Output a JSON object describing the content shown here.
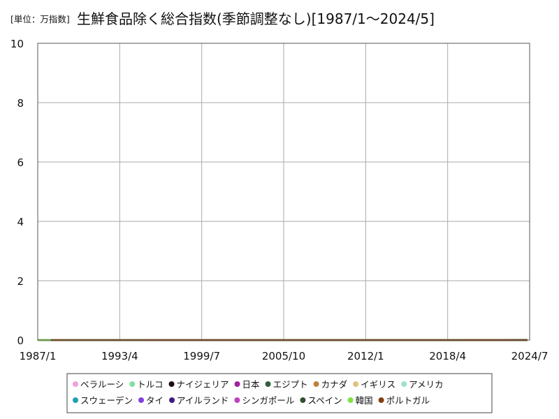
{
  "unit_label": "[単位：万指数]",
  "title": "生鮮食品除く総合指数(季節調整なし)[1987/1～2024/5]",
  "chart_data": {
    "type": "line",
    "title": "生鮮食品除く総合指数(季節調整なし)[1987/1～2024/5]",
    "unit": "[単位：万指数]",
    "xlabel": "",
    "ylabel": "",
    "x_ticks": [
      "1987/1",
      "1993/4",
      "1999/7",
      "2005/10",
      "2012/1",
      "2018/4",
      "2024/7"
    ],
    "xlim": [
      "1987/1",
      "2024/7"
    ],
    "y_ticks": [
      0,
      2,
      4,
      6,
      8,
      10
    ],
    "ylim": [
      0,
      10
    ],
    "grid": true,
    "legend_position": "bottom",
    "series": [
      {
        "name": "ベラルーシ",
        "color": "#f0a0e0",
        "x": [
          "2010/1",
          "2015/1",
          "2020/1",
          "2022/1",
          "2023/1",
          "2024/5"
        ],
        "values": [
          0.003,
          0.006,
          0.008,
          0.01,
          0.012,
          0.014
        ]
      },
      {
        "name": "トルコ",
        "color": "#80e0a0",
        "x": [
          "2004/1",
          "2010/1",
          "2016/1",
          "2020/1",
          "2022/1",
          "2023/1",
          "2024/5"
        ],
        "values": [
          0.0006,
          0.0009,
          0.0012,
          0.0016,
          0.0028,
          0.006,
          0.012
        ]
      },
      {
        "name": "ナイジェリア",
        "color": "#200818",
        "x": [
          "1995/1",
          "2000/1",
          "2005/1"
        ],
        "values": [
          0.002,
          0.002,
          0.002
        ]
      },
      {
        "name": "日本",
        "color": "#a020a0",
        "x": [
          "1987/1",
          "1995/1",
          "2005/1",
          "2015/1",
          "2024/5"
        ],
        "values": [
          0.0009,
          0.001,
          0.001,
          0.001,
          0.0011
        ]
      },
      {
        "name": "エジプト",
        "color": "#306040",
        "x": [
          "2010/1",
          "2024/5"
        ],
        "values": [
          0.001,
          0.004
        ]
      },
      {
        "name": "カナダ",
        "color": "#c08040",
        "x": [
          "1987/1",
          "2024/5"
        ],
        "values": [
          0.0007,
          0.0016
        ]
      },
      {
        "name": "イギリス",
        "color": "#e0c080",
        "x": [
          "1988/1",
          "2024/5"
        ],
        "values": [
          0.0005,
          0.0013
        ]
      },
      {
        "name": "アメリカ",
        "color": "#a0e0d0",
        "x": [
          "1987/1",
          "2024/5"
        ],
        "values": [
          0.0006,
          0.0015
        ]
      },
      {
        "name": "スウェーデン",
        "color": "#20a0b0",
        "x": [
          "1987/1",
          "2024/5"
        ],
        "values": [
          0.0006,
          0.0012
        ]
      },
      {
        "name": "タイ",
        "color": "#8040e0",
        "x": [
          "1995/1",
          "2024/5"
        ],
        "values": [
          0.0007,
          0.0011
        ]
      },
      {
        "name": "アイルランド",
        "color": "#401880",
        "x": [
          "1997/1",
          "2024/5"
        ],
        "values": [
          0.0007,
          0.001
        ]
      },
      {
        "name": "シンガポール",
        "color": "#c040c0",
        "x": [
          "1987/1",
          "2024/5"
        ],
        "values": [
          0.0008,
          0.0011
        ]
      },
      {
        "name": "スペイン",
        "color": "#305030",
        "x": [
          "2002/1",
          "2024/5"
        ],
        "values": [
          0.0008,
          0.0011
        ]
      },
      {
        "name": "韓国",
        "color": "#80e040",
        "x": [
          "1987/1",
          "2024/5"
        ],
        "values": [
          0.0004,
          0.0011
        ]
      },
      {
        "name": "ポルトガル",
        "color": "#804010",
        "x": [
          "1988/1",
          "2024/5"
        ],
        "values": [
          0.0005,
          0.0011
        ]
      }
    ]
  }
}
